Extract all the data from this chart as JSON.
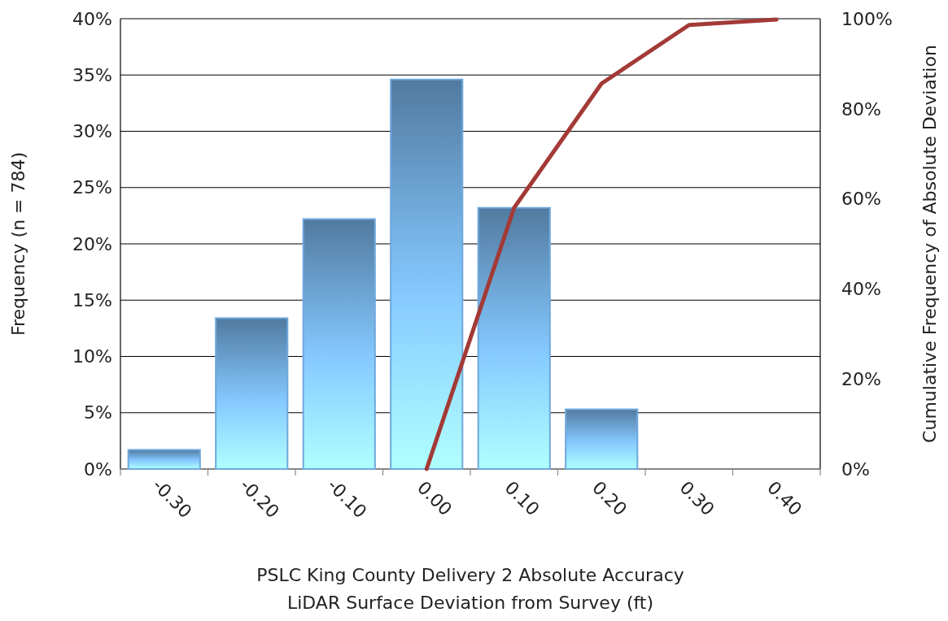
{
  "chart_data": {
    "type": "bar",
    "xlabel": "PSLC King County Delivery 2 Absolute Accuracy\nLiDAR Surface Deviation from Survey (ft)",
    "ylabel": "Frequency (n = 784)",
    "y2label": "Cumulative Frequency of Absolute Deviation",
    "categories": [
      "-0.30",
      "-0.20",
      "-0.10",
      "0.00",
      "0.10",
      "0.20",
      "0.30",
      "0.40"
    ],
    "series": [
      {
        "color": "#6fa8dc",
        "values": [
          1.7,
          13.4,
          22.2,
          34.6,
          23.2,
          5.3,
          0,
          0
        ]
      },
      {
        "type": "line",
        "axis": "y2",
        "color": "#a33a36",
        "values": [
          null,
          null,
          null,
          0,
          58,
          85.6,
          98.6,
          99.8
        ]
      }
    ],
    "ylim": [
      0,
      40
    ],
    "yticks": [
      {
        "value": 0,
        "label": "0%"
      },
      {
        "value": 5,
        "label": "5%"
      },
      {
        "value": 10,
        "label": "10%"
      },
      {
        "value": 15,
        "label": "15%"
      },
      {
        "value": 20,
        "label": "20%"
      },
      {
        "value": 25,
        "label": "25%"
      },
      {
        "value": 30,
        "label": "30%"
      },
      {
        "value": 35,
        "label": "35%"
      },
      {
        "value": 40,
        "label": "40%"
      }
    ],
    "y2lim": [
      0,
      100
    ],
    "y2ticks": [
      {
        "value": 0,
        "label": "0%"
      },
      {
        "value": 20,
        "label": "20%"
      },
      {
        "value": 40,
        "label": "40%"
      },
      {
        "value": 60,
        "label": "60%"
      },
      {
        "value": 80,
        "label": "80%"
      },
      {
        "value": 100,
        "label": "100%"
      }
    ],
    "grid": "y",
    "marker": "none",
    "line_style": "solid"
  }
}
